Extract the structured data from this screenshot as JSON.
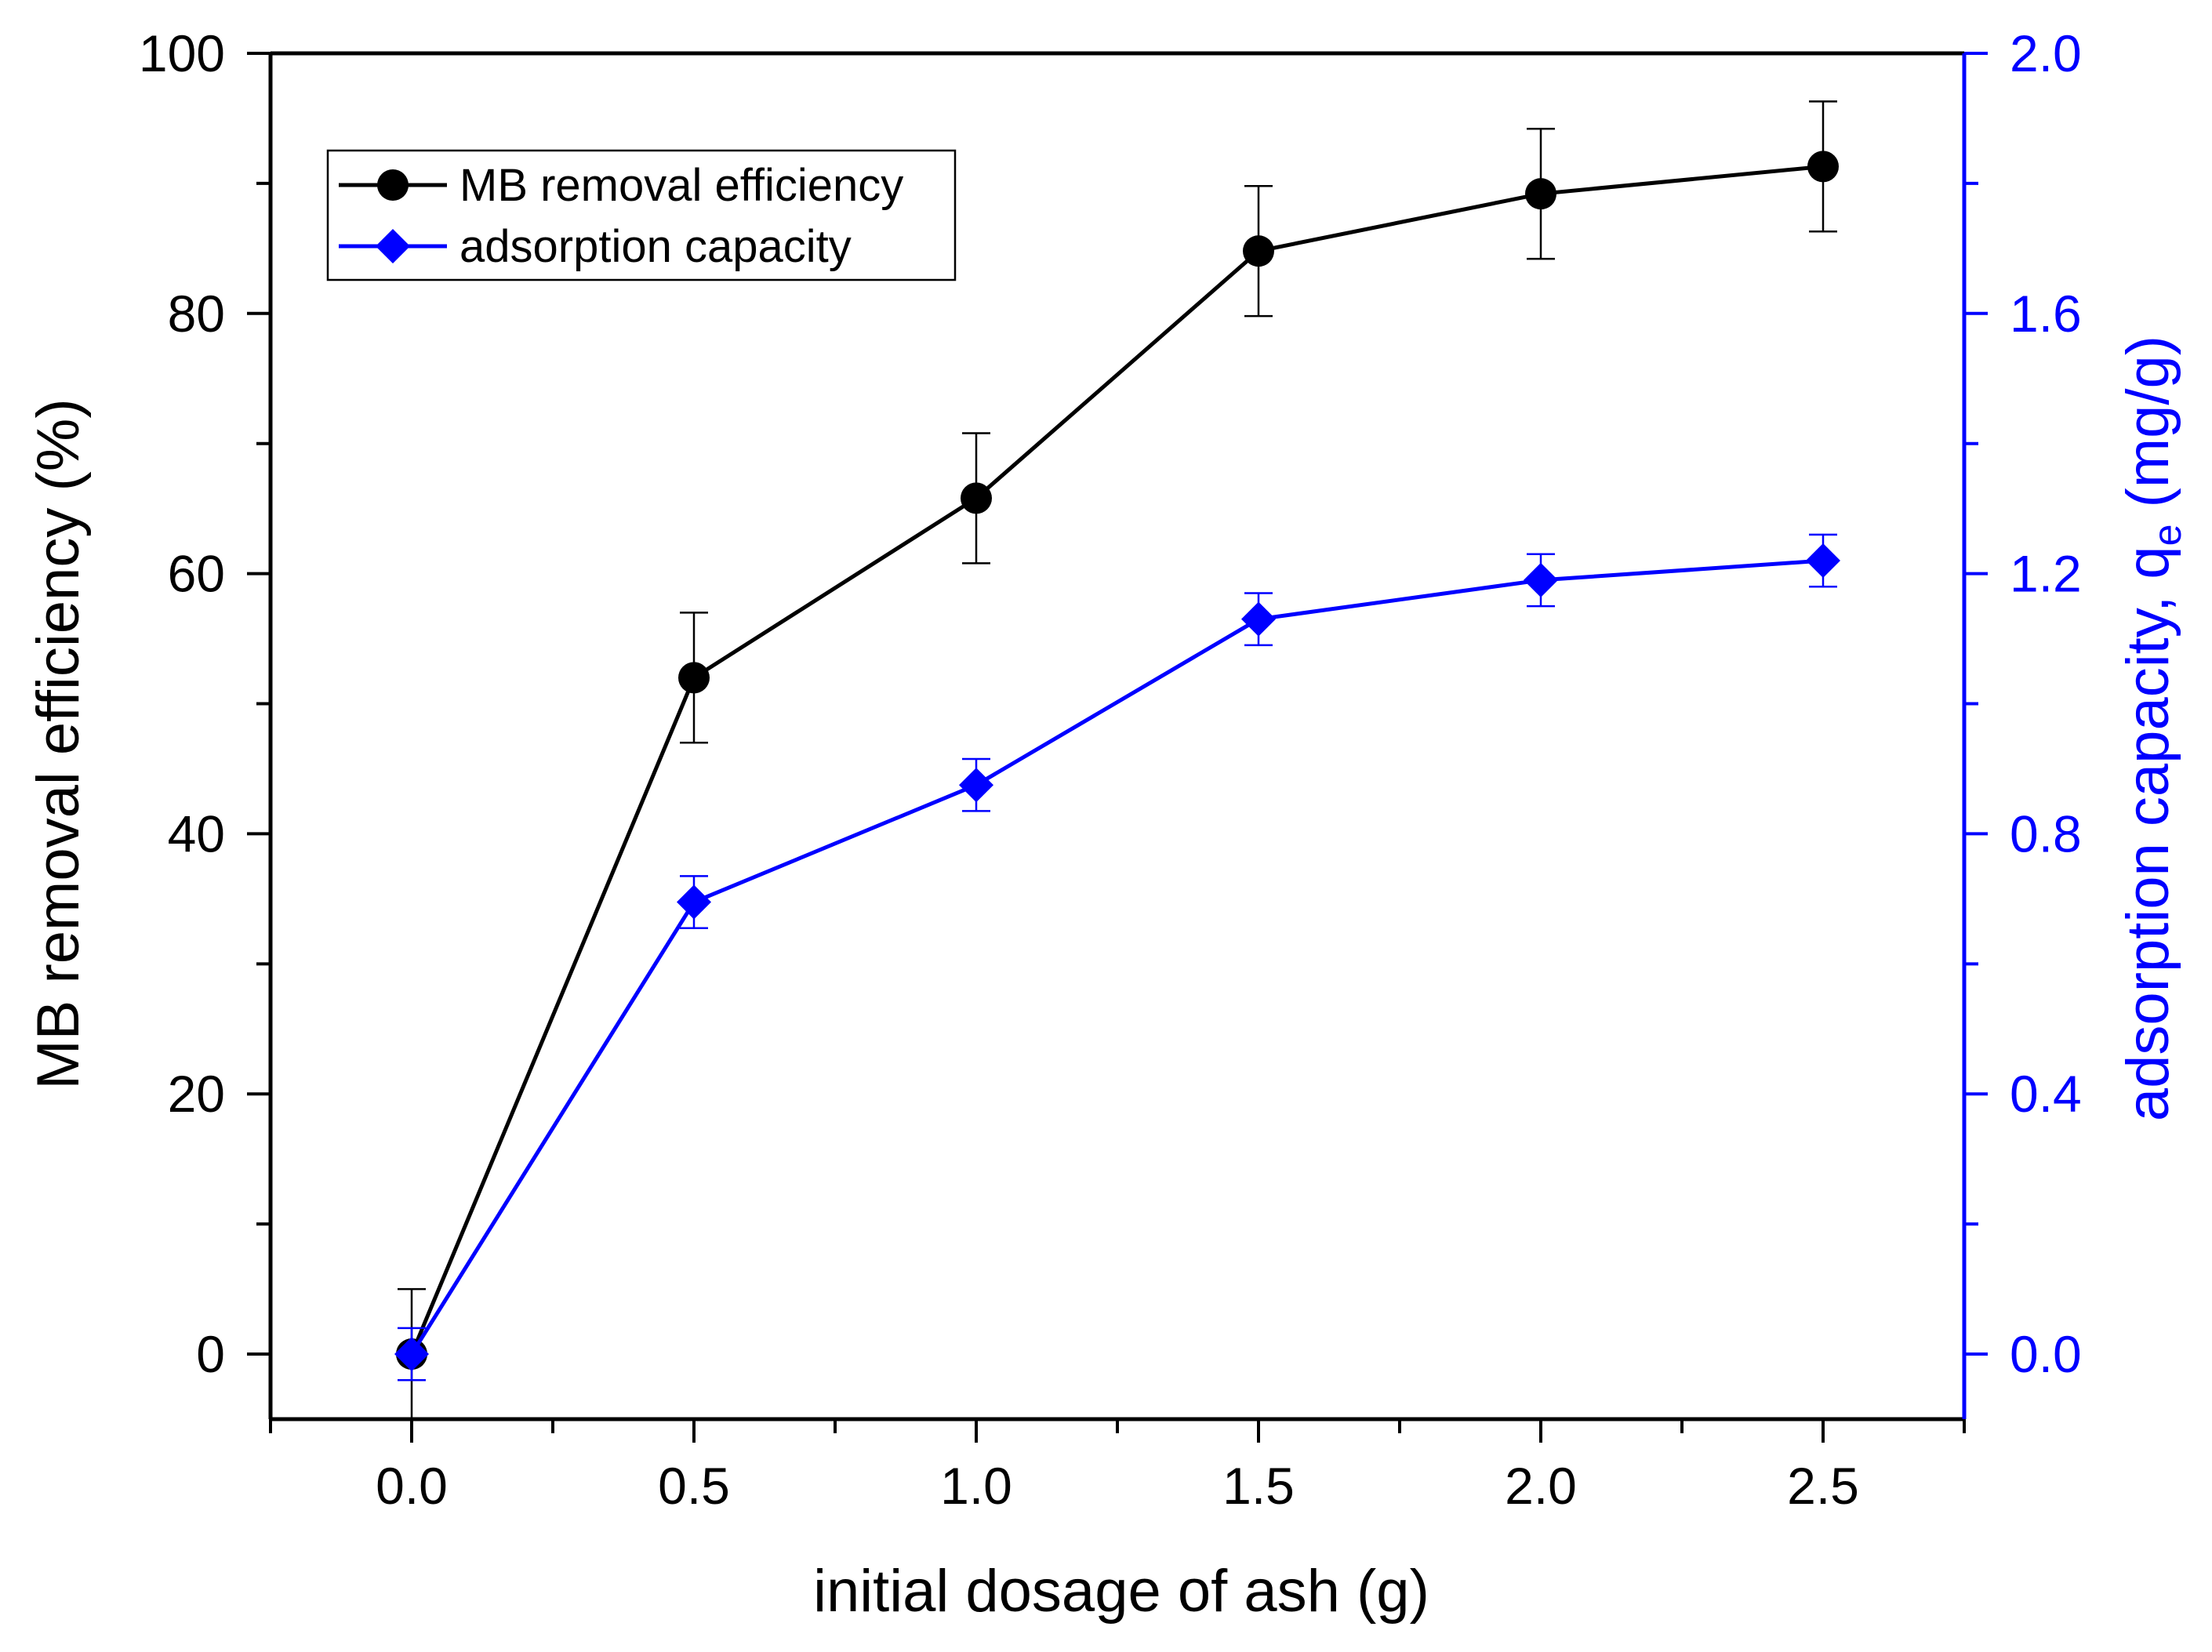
{
  "chart_data": {
    "type": "line",
    "title": "",
    "xlabel": "initial dosage of ash (g)",
    "ylabel": "MB removal efficiency (%)",
    "y2label": {
      "main": "adsorption capacity, q",
      "subscript": "e",
      "suffix": " (mg/g)"
    },
    "x": [
      0.0,
      0.5,
      1.0,
      1.5,
      2.0,
      2.5
    ],
    "xlim": [
      -0.25,
      2.75
    ],
    "ylim": [
      -5,
      100
    ],
    "y2lim": [
      -0.1,
      2.0
    ],
    "x_ticks": [
      "0.0",
      "0.5",
      "1.0",
      "1.5",
      "2.0",
      "2.5"
    ],
    "y_ticks": [
      "0",
      "20",
      "40",
      "60",
      "80",
      "100"
    ],
    "y2_ticks": [
      "0.0",
      "0.4",
      "0.8",
      "1.2",
      "1.6",
      "2.0"
    ],
    "grid": false,
    "legend_position": "top-left",
    "series": [
      {
        "name": "MB removal efficiency",
        "axis": "left",
        "color": "#000000",
        "marker": "circle",
        "values": [
          0,
          52.0,
          65.8,
          84.8,
          89.2,
          91.3
        ],
        "errors": [
          5.0,
          5.0,
          5.0,
          5.0,
          5.0,
          5.0
        ]
      },
      {
        "name": "adsorption capacity",
        "axis": "right",
        "color": "#0000ff",
        "marker": "diamond",
        "values": [
          0.0,
          0.695,
          0.875,
          1.13,
          1.19,
          1.22
        ],
        "errors": [
          0.04,
          0.04,
          0.04,
          0.04,
          0.04,
          0.04
        ]
      }
    ]
  },
  "colors": {
    "axis": "#000000",
    "right_axis": "#0000ff"
  }
}
